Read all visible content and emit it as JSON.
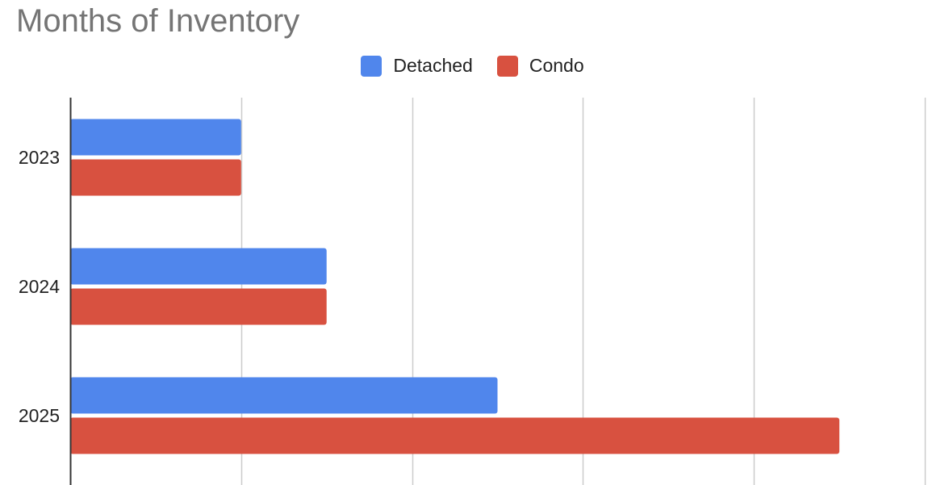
{
  "chart_data": {
    "type": "bar",
    "orientation": "horizontal",
    "title": "Months of Inventory",
    "categories": [
      "2023",
      "2024",
      "2025"
    ],
    "series": [
      {
        "name": "Detached",
        "values": [
          1.0,
          1.5,
          2.5
        ],
        "color": "#5086EC"
      },
      {
        "name": "Condo",
        "values": [
          1.0,
          1.5,
          4.5
        ],
        "color": "#D85140"
      }
    ],
    "xlim": [
      0,
      5
    ],
    "grid": true,
    "x_tick_labels_visible": false,
    "legend_position": "top-center"
  }
}
